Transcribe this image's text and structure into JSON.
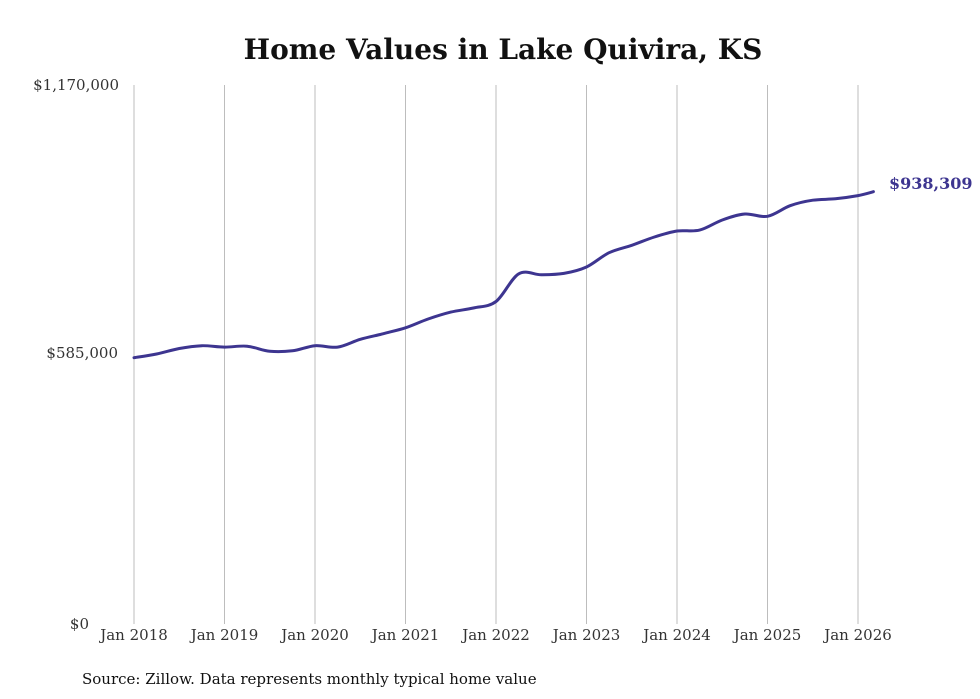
{
  "chart_data": {
    "type": "line",
    "title": "Home Values in Lake Quivira, KS",
    "xlabel": "",
    "ylabel": "",
    "ylim": [
      0,
      1170000
    ],
    "y_ticks": [
      {
        "value": 0,
        "label": "$0"
      },
      {
        "value": 585000,
        "label": "$585,000"
      },
      {
        "value": 1170000,
        "label": "$1,170,000"
      }
    ],
    "x_range": [
      2018.0,
      2026.17
    ],
    "x_ticks": [
      {
        "value": 2018,
        "label": "Jan 2018"
      },
      {
        "value": 2019,
        "label": "Jan 2019"
      },
      {
        "value": 2020,
        "label": "Jan 2020"
      },
      {
        "value": 2021,
        "label": "Jan 2021"
      },
      {
        "value": 2022,
        "label": "Jan 2022"
      },
      {
        "value": 2023,
        "label": "Jan 2023"
      },
      {
        "value": 2024,
        "label": "Jan 2024"
      },
      {
        "value": 2025,
        "label": "Jan 2025"
      },
      {
        "value": 2026,
        "label": "Jan 2026"
      }
    ],
    "grid": "vertical",
    "series": [
      {
        "name": "Typical home value",
        "color": "#3d3590",
        "x": [
          2018.0,
          2018.25,
          2018.5,
          2018.75,
          2019.0,
          2019.25,
          2019.5,
          2019.75,
          2020.0,
          2020.25,
          2020.5,
          2020.75,
          2021.0,
          2021.25,
          2021.5,
          2021.75,
          2022.0,
          2022.25,
          2022.5,
          2022.75,
          2023.0,
          2023.25,
          2023.5,
          2023.75,
          2024.0,
          2024.25,
          2024.5,
          2024.75,
          2025.0,
          2025.25,
          2025.5,
          2025.75,
          2026.0,
          2026.17
        ],
        "values": [
          578000,
          586000,
          598000,
          604000,
          601000,
          603000,
          592000,
          593000,
          604000,
          601000,
          618000,
          630000,
          643000,
          662000,
          677000,
          686000,
          700000,
          760000,
          758000,
          761000,
          775000,
          806000,
          822000,
          840000,
          853000,
          855000,
          877000,
          890000,
          885000,
          908000,
          920000,
          923000,
          930000,
          938309
        ]
      }
    ],
    "end_label": "$938,309",
    "source_note": "Source: Zillow. Data represents monthly typical home value"
  }
}
